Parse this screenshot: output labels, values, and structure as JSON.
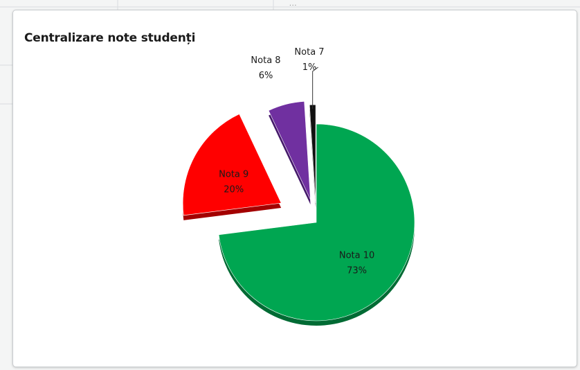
{
  "chart_data": {
    "type": "pie",
    "title": "Centralizare note studenți",
    "slices": [
      {
        "label": "Nota 10",
        "percent_label": "73%",
        "value": 73,
        "color": "#00a651",
        "shade": "#006b34",
        "exploded": false
      },
      {
        "label": "Nota 9",
        "percent_label": "20%",
        "value": 20,
        "color": "#ff0000",
        "shade": "#a30000",
        "exploded": true
      },
      {
        "label": "Nota 8",
        "percent_label": "6%",
        "value": 6,
        "color": "#7030a0",
        "shade": "#45196a",
        "exploded": true
      },
      {
        "label": "Nota 7",
        "percent_label": "1%",
        "value": 1,
        "color": "#111111",
        "shade": "#000000",
        "exploded": true
      }
    ],
    "legend": "none",
    "grid": false
  },
  "top_fragment": "..."
}
